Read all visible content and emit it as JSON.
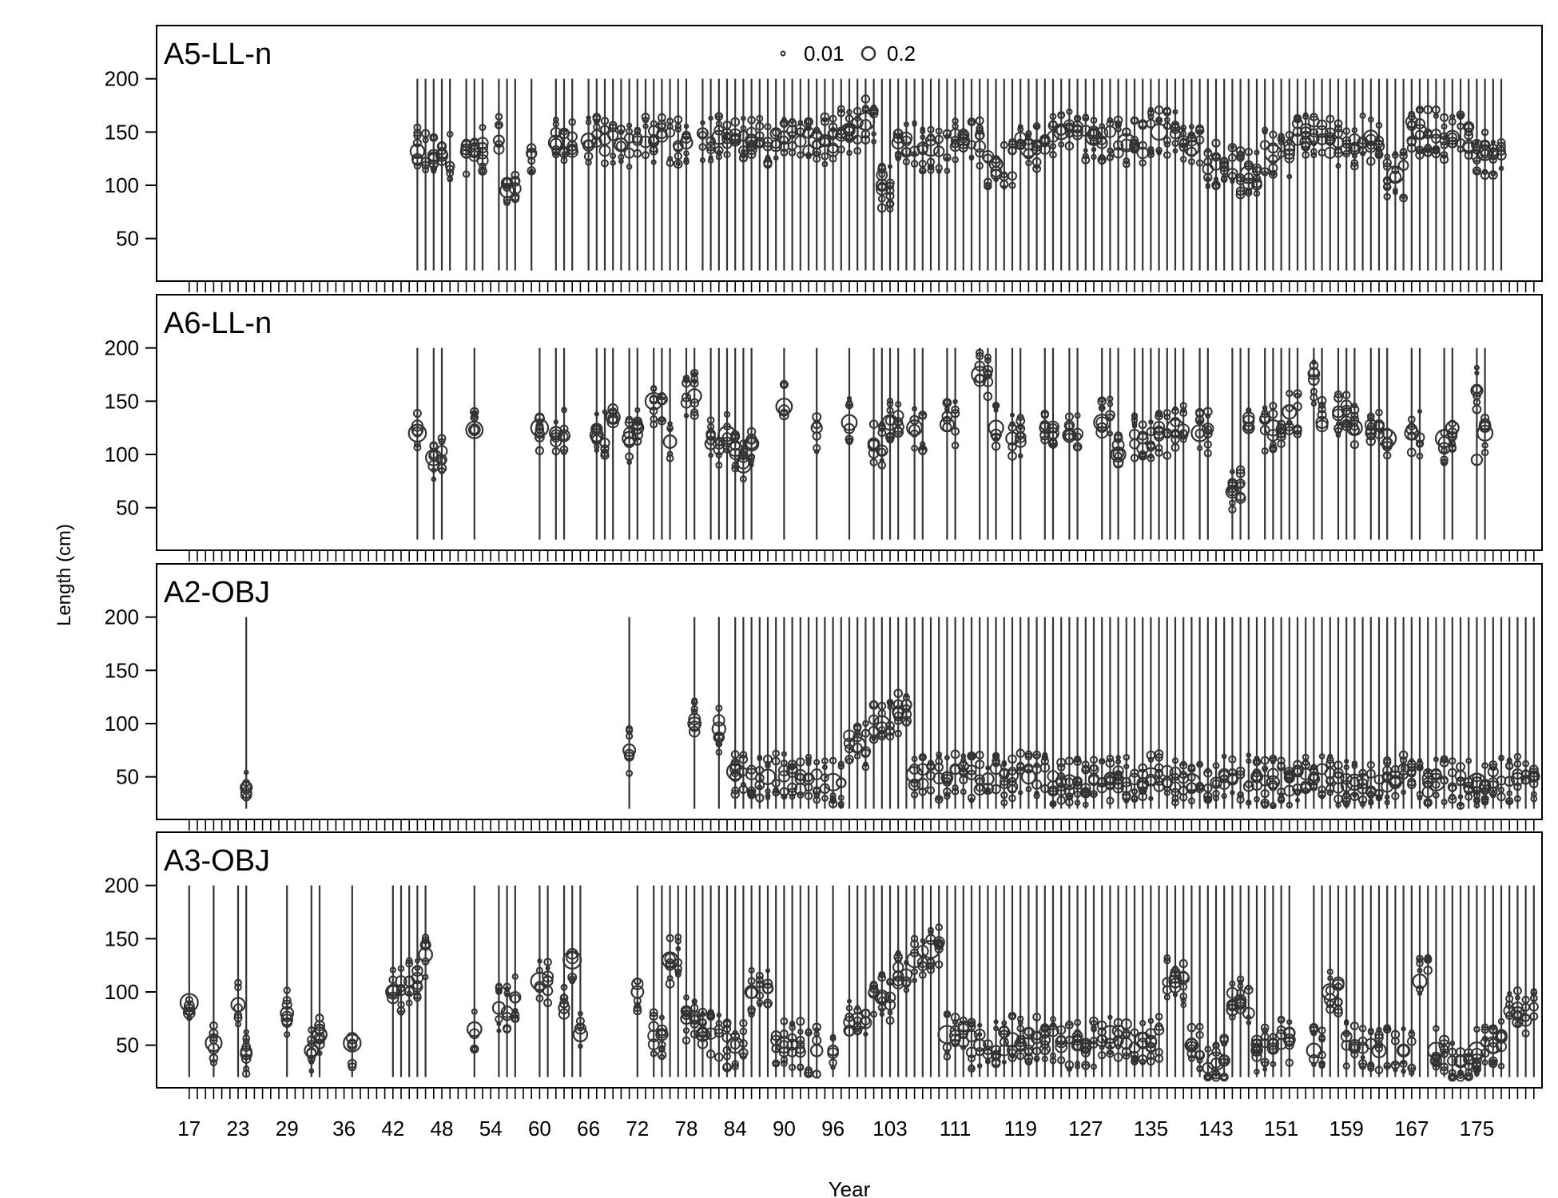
{
  "chart_data": {
    "type": "scatter",
    "subtype": "bubble",
    "xlabel": "Year",
    "ylabel": "Length (cm)",
    "x_range": [
      13,
      183
    ],
    "y_range": [
      10,
      250
    ],
    "x_ticks": [
      17,
      23,
      29,
      36,
      42,
      48,
      54,
      60,
      66,
      72,
      78,
      84,
      90,
      96,
      103,
      111,
      119,
      127,
      135,
      143,
      151,
      159,
      167,
      175
    ],
    "y_ticks": [
      50,
      100,
      150,
      200
    ],
    "length_bins": [
      20,
      200
    ],
    "legend": {
      "position": "top-center",
      "entries": [
        {
          "label": "0.01",
          "size": 0.01
        },
        {
          "label": "0.2",
          "size": 0.2
        }
      ]
    },
    "marker_color": "#333333",
    "panels": [
      {
        "name": "A5-LL-n",
        "years": [
          45,
          46,
          47,
          48,
          49,
          51,
          52,
          53,
          55,
          56,
          57,
          59,
          62,
          63,
          64,
          66,
          67,
          68,
          69,
          70,
          71,
          72,
          73,
          74,
          75,
          76,
          77,
          78,
          80,
          81,
          82,
          83,
          84,
          85,
          86,
          87,
          88,
          89,
          90,
          91,
          92,
          93,
          94,
          95,
          96,
          97,
          98,
          99,
          100,
          101,
          102,
          103,
          104,
          105,
          106,
          107,
          108,
          109,
          110,
          111,
          112,
          113,
          114,
          115,
          116,
          117,
          118,
          119,
          120,
          121,
          122,
          123,
          124,
          125,
          126,
          127,
          128,
          129,
          130,
          131,
          132,
          133,
          134,
          135,
          136,
          137,
          138,
          139,
          140,
          141,
          142,
          143,
          144,
          145,
          146,
          147,
          148,
          149,
          150,
          151,
          152,
          153,
          154,
          155,
          156,
          157,
          158,
          159,
          160,
          161,
          162,
          163,
          164,
          165,
          166,
          167,
          168,
          169,
          170,
          171,
          172,
          173,
          174,
          175,
          176,
          177,
          178
        ],
        "modes": [
          [
            45,
            132
          ],
          [
            48,
            128
          ],
          [
            52,
            132
          ],
          [
            55,
            142
          ],
          [
            56,
            95
          ],
          [
            59,
            130
          ],
          [
            62,
            140
          ],
          [
            66,
            142
          ],
          [
            70,
            138
          ],
          [
            74,
            142
          ],
          [
            78,
            140
          ],
          [
            82,
            145
          ],
          [
            86,
            142
          ],
          [
            90,
            145
          ],
          [
            94,
            142
          ],
          [
            98,
            150
          ],
          [
            100,
            160
          ],
          [
            102,
            100
          ],
          [
            104,
            140
          ],
          [
            108,
            135
          ],
          [
            112,
            140
          ],
          [
            116,
            120
          ],
          [
            120,
            135
          ],
          [
            124,
            150
          ],
          [
            128,
            145
          ],
          [
            132,
            140
          ],
          [
            136,
            150
          ],
          [
            140,
            135
          ],
          [
            143,
            120
          ],
          [
            147,
            110
          ],
          [
            150,
            130
          ],
          [
            154,
            150
          ],
          [
            158,
            140
          ],
          [
            162,
            145
          ],
          [
            165,
            110
          ],
          [
            168,
            150
          ],
          [
            172,
            145
          ],
          [
            176,
            130
          ]
        ]
      },
      {
        "name": "A6-LL-n",
        "years": [
          45,
          47,
          48,
          52,
          60,
          62,
          63,
          67,
          68,
          69,
          71,
          72,
          74,
          75,
          76,
          78,
          79,
          81,
          82,
          83,
          84,
          85,
          86,
          90,
          94,
          98,
          101,
          102,
          103,
          104,
          106,
          107,
          110,
          111,
          114,
          115,
          116,
          118,
          119,
          122,
          123,
          125,
          126,
          129,
          130,
          131,
          133,
          134,
          135,
          136,
          137,
          138,
          139,
          141,
          142,
          145,
          146,
          147,
          149,
          150,
          151,
          152,
          153,
          155,
          156,
          158,
          159,
          160,
          162,
          163,
          164,
          167,
          168,
          171,
          172,
          175,
          176
        ],
        "modes": [
          [
            45,
            120
          ],
          [
            47,
            97
          ],
          [
            52,
            123
          ],
          [
            60,
            125
          ],
          [
            62,
            120
          ],
          [
            67,
            118
          ],
          [
            69,
            135
          ],
          [
            71,
            115
          ],
          [
            72,
            125
          ],
          [
            74,
            150
          ],
          [
            76,
            112
          ],
          [
            79,
            155
          ],
          [
            81,
            110
          ],
          [
            83,
            118
          ],
          [
            84,
            105
          ],
          [
            85,
            90
          ],
          [
            86,
            110
          ],
          [
            90,
            145
          ],
          [
            94,
            125
          ],
          [
            98,
            130
          ],
          [
            101,
            110
          ],
          [
            103,
            130
          ],
          [
            106,
            125
          ],
          [
            110,
            128
          ],
          [
            114,
            175
          ],
          [
            116,
            125
          ],
          [
            118,
            115
          ],
          [
            122,
            125
          ],
          [
            125,
            118
          ],
          [
            129,
            130
          ],
          [
            131,
            100
          ],
          [
            134,
            115
          ],
          [
            136,
            120
          ],
          [
            138,
            125
          ],
          [
            141,
            120
          ],
          [
            145,
            65
          ],
          [
            147,
            125
          ],
          [
            150,
            125
          ],
          [
            152,
            140
          ],
          [
            155,
            170
          ],
          [
            156,
            130
          ],
          [
            158,
            140
          ],
          [
            160,
            125
          ],
          [
            162,
            120
          ],
          [
            164,
            115
          ],
          [
            167,
            120
          ],
          [
            171,
            115
          ],
          [
            172,
            125
          ],
          [
            175,
            160
          ],
          [
            175,
            95
          ],
          [
            176,
            120
          ]
        ]
      },
      {
        "name": "A2-OBJ",
        "years": [
          24,
          71,
          79,
          82,
          84,
          85,
          86,
          87,
          88,
          89,
          90,
          91,
          92,
          93,
          94,
          95,
          96,
          97,
          98,
          99,
          100,
          101,
          102,
          103,
          104,
          105,
          106,
          107,
          108,
          109,
          110,
          111,
          112,
          113,
          114,
          115,
          116,
          117,
          118,
          119,
          120,
          121,
          122,
          123,
          124,
          125,
          126,
          127,
          128,
          129,
          130,
          131,
          132,
          133,
          134,
          135,
          136,
          137,
          138,
          139,
          140,
          141,
          142,
          143,
          144,
          145,
          146,
          147,
          148,
          149,
          150,
          151,
          152,
          153,
          154,
          155,
          156,
          157,
          158,
          159,
          160,
          161,
          162,
          163,
          164,
          165,
          166,
          167,
          168,
          169,
          170,
          171,
          172,
          173,
          174,
          175,
          176,
          177,
          178,
          179,
          180,
          181,
          182
        ],
        "modes": [
          [
            24,
            40
          ],
          [
            71,
            75
          ],
          [
            79,
            100
          ],
          [
            82,
            95
          ],
          [
            84,
            55
          ],
          [
            88,
            50
          ],
          [
            92,
            48
          ],
          [
            96,
            45
          ],
          [
            99,
            80
          ],
          [
            102,
            100
          ],
          [
            104,
            110
          ],
          [
            106,
            52
          ],
          [
            110,
            50
          ],
          [
            115,
            48
          ],
          [
            120,
            50
          ],
          [
            125,
            45
          ],
          [
            130,
            48
          ],
          [
            135,
            50
          ],
          [
            140,
            45
          ],
          [
            145,
            48
          ],
          [
            150,
            45
          ],
          [
            155,
            48
          ],
          [
            160,
            45
          ],
          [
            165,
            48
          ],
          [
            170,
            45
          ],
          [
            175,
            45
          ],
          [
            180,
            48
          ]
        ]
      },
      {
        "name": "A3-OBJ",
        "years": [
          17,
          20,
          23,
          24,
          29,
          32,
          33,
          37,
          42,
          43,
          44,
          45,
          46,
          52,
          55,
          56,
          57,
          60,
          61,
          63,
          64,
          65,
          72,
          74,
          75,
          76,
          77,
          78,
          79,
          80,
          81,
          82,
          83,
          84,
          85,
          86,
          87,
          88,
          89,
          90,
          91,
          92,
          93,
          94,
          96,
          98,
          99,
          100,
          101,
          102,
          103,
          104,
          105,
          106,
          107,
          108,
          109,
          110,
          111,
          112,
          113,
          114,
          115,
          116,
          117,
          118,
          119,
          120,
          121,
          122,
          123,
          124,
          125,
          126,
          127,
          128,
          129,
          130,
          131,
          132,
          133,
          134,
          135,
          136,
          137,
          138,
          139,
          140,
          141,
          142,
          143,
          144,
          145,
          146,
          147,
          148,
          149,
          150,
          151,
          152,
          155,
          156,
          157,
          158,
          159,
          160,
          161,
          162,
          163,
          164,
          165,
          166,
          167,
          168,
          169,
          170,
          171,
          172,
          173,
          174,
          175,
          176,
          177,
          178,
          179,
          180,
          181,
          182
        ],
        "modes": [
          [
            17,
            90
          ],
          [
            20,
            52
          ],
          [
            23,
            88
          ],
          [
            24,
            42
          ],
          [
            29,
            80
          ],
          [
            32,
            45
          ],
          [
            33,
            60
          ],
          [
            37,
            52
          ],
          [
            42,
            100
          ],
          [
            44,
            110
          ],
          [
            46,
            135
          ],
          [
            52,
            65
          ],
          [
            55,
            85
          ],
          [
            57,
            95
          ],
          [
            60,
            110
          ],
          [
            63,
            85
          ],
          [
            64,
            130
          ],
          [
            65,
            60
          ],
          [
            72,
            100
          ],
          [
            75,
            60
          ],
          [
            76,
            130
          ],
          [
            78,
            75
          ],
          [
            80,
            60
          ],
          [
            84,
            50
          ],
          [
            86,
            100
          ],
          [
            90,
            50
          ],
          [
            94,
            45
          ],
          [
            96,
            45
          ],
          [
            99,
            72
          ],
          [
            102,
            95
          ],
          [
            104,
            115
          ],
          [
            106,
            130
          ],
          [
            108,
            140
          ],
          [
            110,
            60
          ],
          [
            114,
            50
          ],
          [
            118,
            55
          ],
          [
            122,
            55
          ],
          [
            126,
            50
          ],
          [
            130,
            60
          ],
          [
            134,
            55
          ],
          [
            138,
            110
          ],
          [
            140,
            50
          ],
          [
            143,
            35
          ],
          [
            146,
            90
          ],
          [
            148,
            45
          ],
          [
            152,
            55
          ],
          [
            155,
            45
          ],
          [
            157,
            100
          ],
          [
            160,
            50
          ],
          [
            163,
            45
          ],
          [
            166,
            45
          ],
          [
            168,
            110
          ],
          [
            170,
            45
          ],
          [
            173,
            35
          ],
          [
            175,
            45
          ],
          [
            177,
            50
          ],
          [
            180,
            80
          ]
        ]
      }
    ]
  }
}
